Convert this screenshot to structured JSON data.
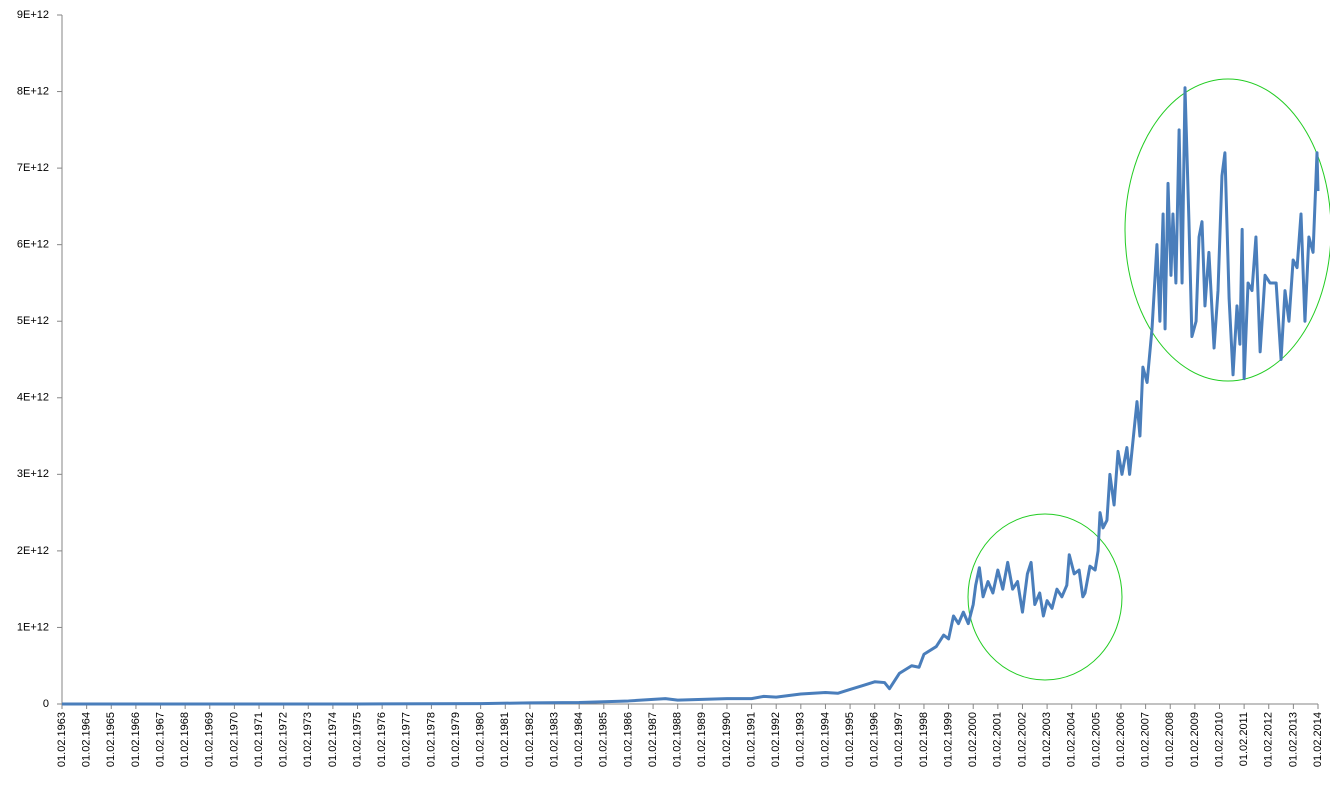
{
  "chart_data": {
    "type": "line",
    "x": [
      1963,
      1975,
      1980,
      1982,
      1984,
      1985,
      1986,
      1987,
      1987.5,
      1988,
      1989,
      1990,
      1991,
      1991.5,
      1992,
      1993,
      1994,
      1994.5,
      1995,
      1995.5,
      1996,
      1996.4,
      1996.6,
      1997,
      1997.5,
      1997.8,
      1998,
      1998.5,
      1998.8,
      1999,
      1999.2,
      1999.4,
      1999.6,
      1999.8,
      2000,
      2000.1,
      2000.25,
      2000.4,
      2000.6,
      2000.8,
      2001,
      2001.2,
      2001.4,
      2001.6,
      2001.8,
      2002,
      2002.2,
      2002.35,
      2002.5,
      2002.7,
      2002.85,
      2003,
      2003.2,
      2003.4,
      2003.6,
      2003.8,
      2003.9,
      2004.1,
      2004.3,
      2004.45,
      2004.54,
      2004.74,
      2004.95,
      2005.07,
      2005.15,
      2005.27,
      2005.43,
      2005.55,
      2005.72,
      2005.88,
      2006.04,
      2006.24,
      2006.35,
      2006.57,
      2006.65,
      2006.77,
      2006.89,
      2007.06,
      2007.26,
      2007.46,
      2007.58,
      2007.71,
      2007.79,
      2007.91,
      2008.03,
      2008.11,
      2008.23,
      2008.36,
      2008.48,
      2008.6,
      2008.76,
      2008.88,
      2009.05,
      2009.17,
      2009.29,
      2009.41,
      2009.57,
      2009.78,
      2009.94,
      2010.1,
      2010.22,
      2010.39,
      2010.55,
      2010.71,
      2010.83,
      2010.92,
      2011,
      2011.16,
      2011.32,
      2011.48,
      2011.65,
      2011.85,
      2012.05,
      2012.3,
      2012.5,
      2012.66,
      2012.82,
      2012.99,
      2013.15,
      2013.31,
      2013.47,
      2013.63,
      2013.8,
      2013.96,
      2014
    ],
    "series": [
      {
        "color": "#4a7ebb",
        "values": [
          0,
          0,
          5000000000.0,
          15000000000.0,
          20000000000.0,
          30000000000.0,
          40000000000.0,
          60000000000.0,
          70000000000.0,
          50000000000.0,
          60000000000.0,
          70000000000.0,
          70000000000.0,
          100000000000.0,
          90000000000.0,
          130000000000.0,
          150000000000.0,
          140000000000.0,
          190000000000.0,
          240000000000.0,
          290000000000.0,
          280000000000.0,
          200000000000.0,
          400000000000.0,
          500000000000.0,
          480000000000.0,
          650000000000.0,
          750000000000.0,
          900000000000.0,
          850000000000.0,
          1150000000000.0,
          1050000000000.0,
          1200000000000.0,
          1050000000000.0,
          1300000000000.0,
          1550000000000.0,
          1780000000000.0,
          1400000000000.0,
          1600000000000.0,
          1450000000000.0,
          1750000000000.0,
          1500000000000.0,
          1850000000000.0,
          1500000000000.0,
          1600000000000.0,
          1200000000000.0,
          1700000000000.0,
          1850000000000.0,
          1300000000000.0,
          1450000000000.0,
          1150000000000.0,
          1350000000000.0,
          1250000000000.0,
          1500000000000.0,
          1400000000000.0,
          1550000000000.0,
          1950000000000.0,
          1700000000000.0,
          1750000000000.0,
          1400000000000.0,
          1450000000000.0,
          1800000000000.0,
          1750000000000.0,
          2000000000000.0,
          2500000000000.0,
          2300000000000.0,
          2400000000000.0,
          3000000000000.0,
          2600000000000.0,
          3300000000000.0,
          3000000000000.0,
          3350000000000.0,
          3000000000000.0,
          3700000000000.0,
          3950000000000.0,
          3500000000000.0,
          4400000000000.0,
          4200000000000.0,
          4900000000000.0,
          6000000000000.0,
          5000000000000.0,
          6400000000000.0,
          4900000000000.0,
          6800000000000.0,
          5600000000000.0,
          6400000000000.0,
          5500000000000.0,
          7500000000000.0,
          5500000000000.0,
          8050000000000.0,
          6300000000000.0,
          4800000000000.0,
          5000000000000.0,
          6100000000000.0,
          6300000000000.0,
          5200000000000.0,
          5900000000000.0,
          4650000000000.0,
          5400000000000.0,
          6900000000000.0,
          7200000000000.0,
          5300000000000.0,
          4300000000000.0,
          5200000000000.0,
          4700000000000.0,
          6200000000000.0,
          4250000000000.0,
          5500000000000.0,
          5400000000000.0,
          6100000000000.0,
          4600000000000.0,
          5600000000000.0,
          5500000000000.0,
          5500000000000.0,
          4500000000000.0,
          5400000000000.0,
          5000000000000.0,
          5800000000000.0,
          5700000000000.0,
          6400000000000.0,
          5000000000000.0,
          6100000000000.0,
          5900000000000.0,
          7200000000000.0,
          6700000000000.0
        ]
      }
    ],
    "xlim": [
      1963,
      2014
    ],
    "xticks": [
      {
        "value": 1963,
        "label": "01.02.1963"
      },
      {
        "value": 1964,
        "label": "01.02.1964"
      },
      {
        "value": 1965,
        "label": "01.02.1965"
      },
      {
        "value": 1966,
        "label": "01.02.1966"
      },
      {
        "value": 1967,
        "label": "01.02.1967"
      },
      {
        "value": 1968,
        "label": "01.02.1968"
      },
      {
        "value": 1969,
        "label": "01.02.1969"
      },
      {
        "value": 1970,
        "label": "01.02.1970"
      },
      {
        "value": 1971,
        "label": "01.02.1971"
      },
      {
        "value": 1972,
        "label": "01.02.1972"
      },
      {
        "value": 1973,
        "label": "01.02.1973"
      },
      {
        "value": 1974,
        "label": "01.02.1974"
      },
      {
        "value": 1975,
        "label": "01.02.1975"
      },
      {
        "value": 1976,
        "label": "01.02.1976"
      },
      {
        "value": 1977,
        "label": "01.02.1977"
      },
      {
        "value": 1978,
        "label": "01.02.1978"
      },
      {
        "value": 1979,
        "label": "01.02.1979"
      },
      {
        "value": 1980,
        "label": "01.02.1980"
      },
      {
        "value": 1981,
        "label": "01.02.1981"
      },
      {
        "value": 1982,
        "label": "01.02.1982"
      },
      {
        "value": 1983,
        "label": "01.02.1983"
      },
      {
        "value": 1984,
        "label": "01.02.1984"
      },
      {
        "value": 1985,
        "label": "01.02.1985"
      },
      {
        "value": 1986,
        "label": "01.02.1986"
      },
      {
        "value": 1987,
        "label": "01.02.1987"
      },
      {
        "value": 1988,
        "label": "01.02.1988"
      },
      {
        "value": 1989,
        "label": "01.02.1989"
      },
      {
        "value": 1990,
        "label": "01.02.1990"
      },
      {
        "value": 1991,
        "label": "01.02.1991"
      },
      {
        "value": 1992,
        "label": "01.02.1992"
      },
      {
        "value": 1993,
        "label": "01.02.1993"
      },
      {
        "value": 1994,
        "label": "01.02.1994"
      },
      {
        "value": 1995,
        "label": "01.02.1995"
      },
      {
        "value": 1996,
        "label": "01.02.1996"
      },
      {
        "value": 1997,
        "label": "01.02.1997"
      },
      {
        "value": 1998,
        "label": "01.02.1998"
      },
      {
        "value": 1999,
        "label": "01.02.1999"
      },
      {
        "value": 2000,
        "label": "01.02.2000"
      },
      {
        "value": 2001,
        "label": "01.02.2001"
      },
      {
        "value": 2002,
        "label": "01.02.2002"
      },
      {
        "value": 2003,
        "label": "01.02.2003"
      },
      {
        "value": 2004,
        "label": "01.02.2004"
      },
      {
        "value": 2005,
        "label": "01.02.2005"
      },
      {
        "value": 2006,
        "label": "01.02.2006"
      },
      {
        "value": 2007,
        "label": "01.02.2007"
      },
      {
        "value": 2008,
        "label": "01.02.2008"
      },
      {
        "value": 2009,
        "label": "01.02.2009"
      },
      {
        "value": 2010,
        "label": "01.02.2010"
      },
      {
        "value": 2011,
        "label": "01.02.2011"
      },
      {
        "value": 2012,
        "label": "01.02.2012"
      },
      {
        "value": 2013,
        "label": "01.02.2013"
      },
      {
        "value": 2014,
        "label": "01.02.2014"
      }
    ],
    "ylim": [
      0,
      9000000000000.0
    ],
    "yticks": [
      0,
      {
        "value": 1000000000000.0,
        "label": "1E+12"
      },
      {
        "value": 2000000000000.0,
        "label": "2E+12"
      },
      {
        "value": 3000000000000.0,
        "label": "3E+12"
      },
      {
        "value": 4000000000000.0,
        "label": "4E+12"
      },
      {
        "value": 5000000000000.0,
        "label": "5E+12"
      },
      {
        "value": 6000000000000.0,
        "label": "6E+12"
      },
      {
        "value": 7000000000000.0,
        "label": "7E+12"
      },
      {
        "value": 8000000000000.0,
        "label": "8E+12"
      },
      {
        "value": 9000000000000.0,
        "label": "9E+12"
      }
    ],
    "grid": false
  }
}
